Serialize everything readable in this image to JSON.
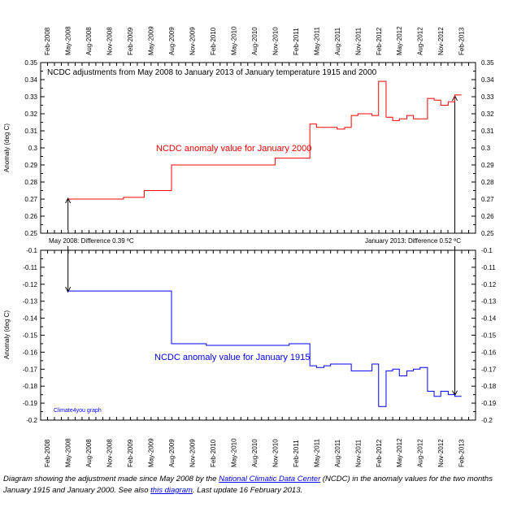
{
  "chart_data": [
    {
      "type": "line",
      "title": "NCDC adjustments from May 2008 to January 2013 of January temperature 1915 and 2000",
      "ylabel": "Anomaly (deg C)",
      "ylim": [
        0.25,
        0.35
      ],
      "yticks": [
        "0.35",
        "0.34",
        "0.33",
        "0.32",
        "0.31",
        "0.3",
        "0.29",
        "0.28",
        "0.27",
        "0.26",
        "0.25"
      ],
      "series": [
        {
          "name": "NCDC anomaly value for January 2000",
          "color": "#ff0000",
          "x": [
            2008.33,
            2008.5,
            2008.75,
            2009.0,
            2009.25,
            2009.5,
            2009.58,
            2010.0,
            2010.5,
            2010.83,
            2011.0,
            2011.25,
            2011.33,
            2011.42,
            2011.5,
            2011.58,
            2011.67,
            2011.75,
            2011.83,
            2011.92,
            2012.0,
            2012.08,
            2012.17,
            2012.25,
            2012.33,
            2012.42,
            2012.5,
            2012.58,
            2012.67,
            2012.75,
            2012.83,
            2012.92,
            2013.0,
            2013.08
          ],
          "y": [
            0.27,
            0.27,
            0.27,
            0.271,
            0.275,
            0.275,
            0.29,
            0.29,
            0.29,
            0.294,
            0.294,
            0.314,
            0.312,
            0.312,
            0.312,
            0.311,
            0.312,
            0.319,
            0.32,
            0.32,
            0.319,
            0.339,
            0.318,
            0.316,
            0.317,
            0.319,
            0.317,
            0.317,
            0.329,
            0.328,
            0.325,
            0.327,
            0.331,
            0.331
          ]
        }
      ],
      "annotations": [
        {
          "text": "NCDC anomaly value for January 2000",
          "color": "#ff0000"
        },
        {
          "text": "May 2008: Difference 0.39 ºC",
          "color": "#000000"
        },
        {
          "text": "January 2013: Difference 0.52 ºC",
          "color": "#000000"
        }
      ]
    },
    {
      "type": "line",
      "ylabel": "Anomaly (deg C)",
      "ylim": [
        -0.2,
        -0.1
      ],
      "yticks": [
        "-0.1",
        "-0.11",
        "-0.12",
        "-0.13",
        "-0.14",
        "-0.15",
        "-0.16",
        "-0.17",
        "-0.18",
        "-0.19",
        "-0.2"
      ],
      "series": [
        {
          "name": "NCDC anomaly value for January 1915",
          "color": "#0000ff",
          "x": [
            2008.33,
            2009.0,
            2009.25,
            2009.5,
            2009.58,
            2010.0,
            2010.5,
            2011.0,
            2011.25,
            2011.33,
            2011.42,
            2011.5,
            2011.58,
            2011.67,
            2011.75,
            2011.83,
            2011.92,
            2012.0,
            2012.08,
            2012.17,
            2012.25,
            2012.33,
            2012.42,
            2012.5,
            2012.58,
            2012.67,
            2012.75,
            2012.83,
            2012.92,
            2013.0,
            2013.08
          ],
          "y": [
            -0.124,
            -0.124,
            -0.124,
            -0.124,
            -0.155,
            -0.156,
            -0.156,
            -0.155,
            -0.168,
            -0.169,
            -0.168,
            -0.167,
            -0.167,
            -0.167,
            -0.171,
            -0.171,
            -0.171,
            -0.167,
            -0.192,
            -0.171,
            -0.17,
            -0.174,
            -0.171,
            -0.17,
            -0.169,
            -0.183,
            -0.186,
            -0.183,
            -0.185,
            -0.186,
            -0.186
          ]
        }
      ],
      "annotations": [
        {
          "text": "NCDC anomaly value for January 1915",
          "color": "#0000ff"
        },
        {
          "text": "Climate4you graph",
          "color": "#0000ff"
        }
      ]
    }
  ],
  "x_axis": {
    "tick_labels": [
      "Feb-2008",
      "May-2008",
      "Aug-2008",
      "Nov-2008",
      "Feb-2009",
      "May-2009",
      "Aug-2009",
      "Nov-2009",
      "Feb-2010",
      "May-2010",
      "Aug-2010",
      "Nov-2010",
      "Feb-2011",
      "May-2011",
      "Aug-2011",
      "Nov-2011",
      "Feb-2012",
      "May-2012",
      "Aug-2012",
      "Nov-2012",
      "Feb-2013"
    ],
    "tick_values": [
      2008.08,
      2008.33,
      2008.58,
      2008.83,
      2009.08,
      2009.33,
      2009.58,
      2009.83,
      2010.08,
      2010.33,
      2010.58,
      2010.83,
      2011.08,
      2011.33,
      2011.58,
      2011.83,
      2012.08,
      2012.33,
      2012.58,
      2012.83,
      2013.08
    ],
    "range": [
      2008.0,
      2013.25
    ]
  },
  "caption": {
    "part1": "Diagram showing the adjustment made since May 2008 by the ",
    "link1": "National Climatic Data Center",
    "part2": " (NCDC) in the anomaly values for  the two months January 1915 and January 2000. See also ",
    "link2": "this diagram",
    "part3": ". Last update 16 February 2013."
  }
}
